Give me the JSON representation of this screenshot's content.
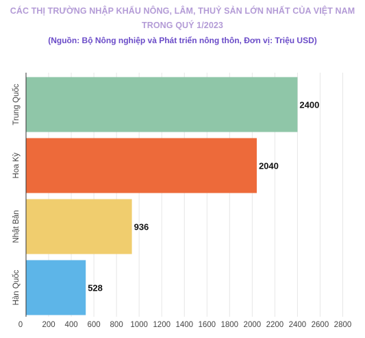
{
  "chart_data": {
    "type": "bar",
    "orientation": "horizontal",
    "title_lines": [
      "CÁC THỊ TRƯỜNG NHẬP KHẨU NÔNG, LÂM, THUỶ SẢN LỚN NHẤT CỦA VIỆT NAM",
      "TRONG QUÝ 1/2023"
    ],
    "subtitle": "(Nguồn: Bộ Nông nghiệp và Phát triển nông thôn, Đơn vị: Triệu USD)",
    "categories": [
      "Trung Quốc",
      "Hoa Kỳ",
      "Nhật Bản",
      "Hàn Quốc"
    ],
    "values": [
      2400,
      2040,
      936,
      528
    ],
    "data_labels": [
      "2400",
      "2040",
      "936",
      "528"
    ],
    "colors": [
      "#8fc6a8",
      "#ed6a3a",
      "#f0cd6e",
      "#5db5e8"
    ],
    "xlim": [
      0,
      2900
    ],
    "x_ticks": [
      0,
      200,
      400,
      600,
      800,
      1000,
      1200,
      1400,
      1600,
      1800,
      2000,
      2200,
      2400,
      2600,
      2800
    ],
    "x_tick_labels": [
      "0",
      "200",
      "400",
      "600",
      "800",
      "1000",
      "1200",
      "1400",
      "1600",
      "1800",
      "2000",
      "2200",
      "2400",
      "2600",
      "2800"
    ],
    "grid": true,
    "legend": "none"
  }
}
